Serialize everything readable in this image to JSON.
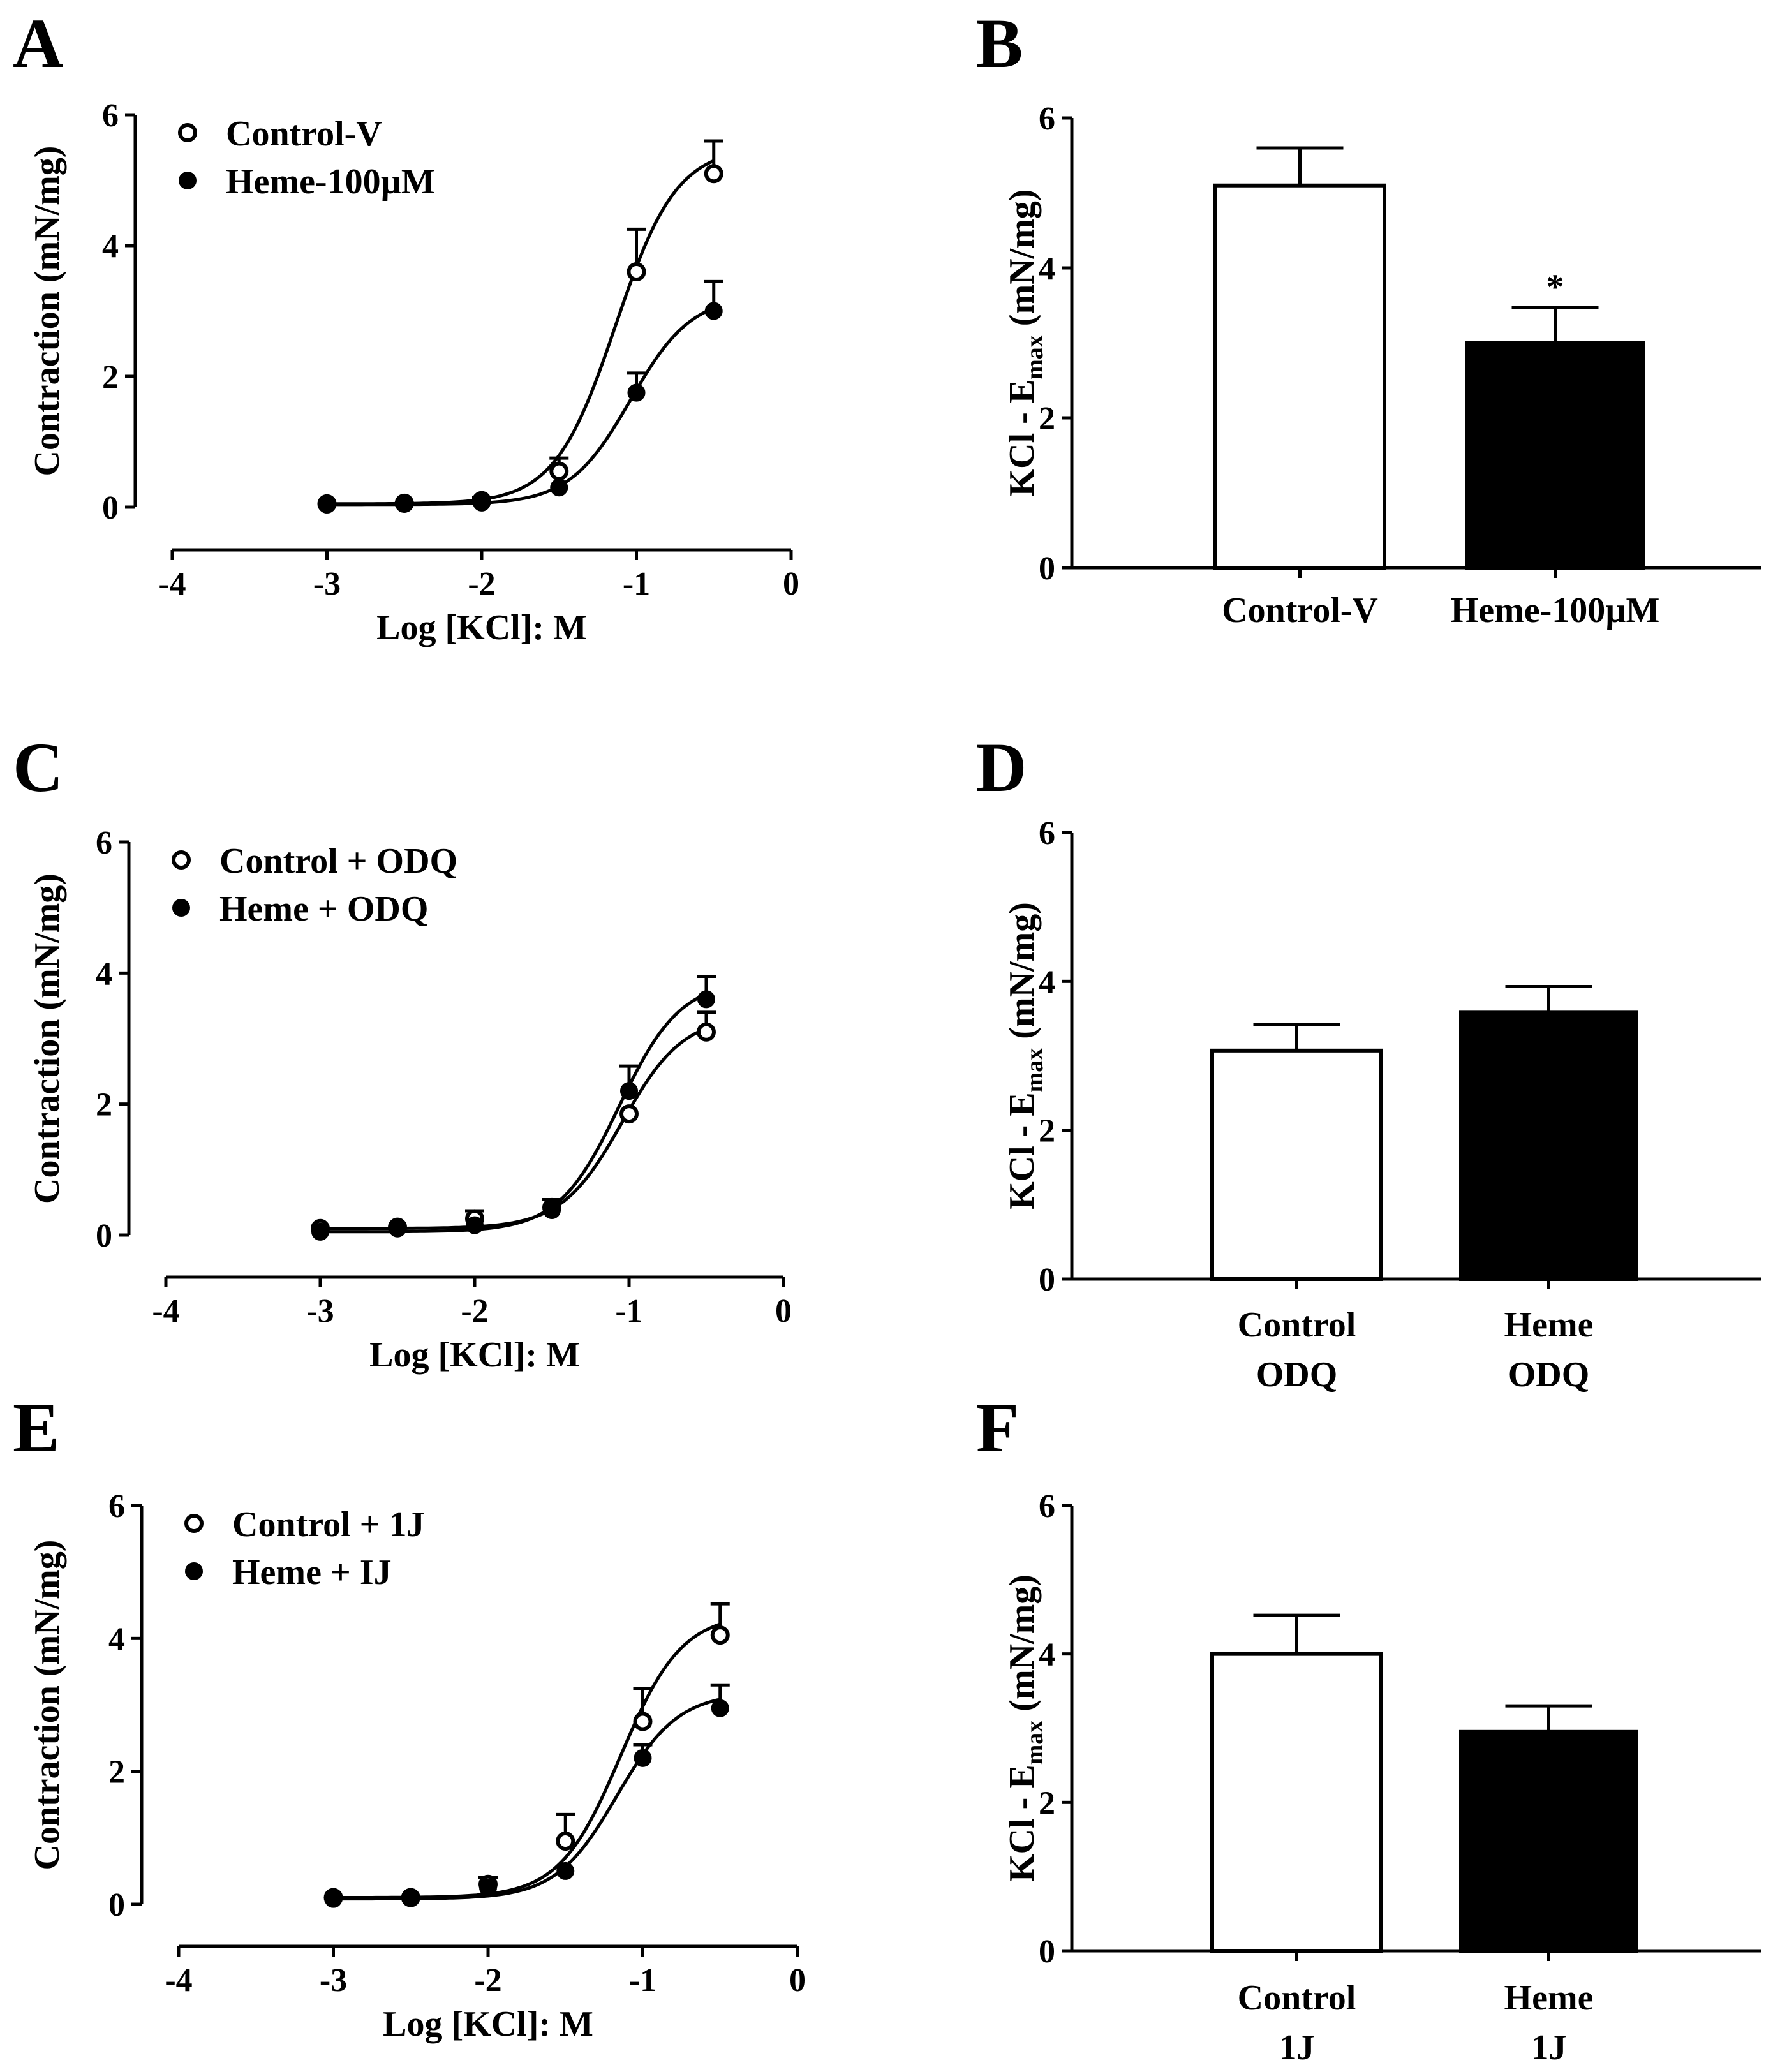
{
  "panels": {
    "A": "A",
    "B": "B",
    "C": "C",
    "D": "D",
    "E": "E",
    "F": "F"
  },
  "chart_data": [
    {
      "panel": "A",
      "type": "line",
      "xlabel": "Log [KCl]: M",
      "ylabel": "Contraction (mN/mg)",
      "xlim": [
        -4,
        0
      ],
      "ylim": [
        0,
        6
      ],
      "xticks": [
        "-4",
        "-3",
        "-2",
        "-1",
        "0"
      ],
      "yticks": [
        "0",
        "2",
        "4",
        "6"
      ],
      "legend_position": "top-left",
      "series": [
        {
          "name": "Control-V",
          "marker": "open-circle",
          "x": [
            -3,
            -2.5,
            -2,
            -1.5,
            -1,
            -0.5
          ],
          "y": [
            0.05,
            0.06,
            0.1,
            0.55,
            3.6,
            5.1
          ],
          "err": [
            0,
            0,
            0.05,
            0.2,
            0.65,
            0.5
          ]
        },
        {
          "name": "Heme-100µM",
          "marker": "filled-circle",
          "x": [
            -3,
            -2.5,
            -2,
            -1.5,
            -1,
            -0.5
          ],
          "y": [
            0.04,
            0.05,
            0.07,
            0.3,
            1.75,
            3.0
          ],
          "err": [
            0,
            0,
            0,
            0,
            0.3,
            0.45
          ]
        }
      ]
    },
    {
      "panel": "B",
      "type": "bar",
      "ylabel": "KCl - E",
      "ylabel_sub": "max",
      "ylabel_tail": " (mN/mg)",
      "ylim": [
        0,
        6
      ],
      "yticks": [
        "0",
        "2",
        "4",
        "6"
      ],
      "categories": [
        [
          "Control-V"
        ],
        [
          "Heme-100µM"
        ]
      ],
      "values": [
        5.1,
        3.0
      ],
      "errors": [
        0.5,
        0.47
      ],
      "fills": [
        "#ffffff",
        "#000000"
      ],
      "annotations": [
        "",
        "*"
      ]
    },
    {
      "panel": "C",
      "type": "line",
      "xlabel": "Log [KCl]: M",
      "ylabel": "Contraction (mN/mg)",
      "xlim": [
        -4,
        0
      ],
      "ylim": [
        0,
        6
      ],
      "xticks": [
        "-4",
        "-3",
        "-2",
        "-1",
        "0"
      ],
      "yticks": [
        "0",
        "2",
        "4",
        "6"
      ],
      "legend_position": "top-left",
      "series": [
        {
          "name": "Control + ODQ",
          "marker": "open-circle",
          "x": [
            -3,
            -2.5,
            -2,
            -1.5,
            -1,
            -0.5
          ],
          "y": [
            0.1,
            0.12,
            0.25,
            0.42,
            1.85,
            3.1
          ],
          "err": [
            0,
            0,
            0.12,
            0.12,
            0,
            0.3
          ]
        },
        {
          "name": "Heme  + ODQ",
          "marker": "filled-circle",
          "x": [
            -3,
            -2.5,
            -2,
            -1.5,
            -1,
            -0.5
          ],
          "y": [
            0.05,
            0.1,
            0.15,
            0.38,
            2.2,
            3.6
          ],
          "err": [
            0,
            0,
            0,
            0,
            0.38,
            0.35
          ]
        }
      ]
    },
    {
      "panel": "D",
      "type": "bar",
      "ylabel": "KCl - E",
      "ylabel_sub": "max",
      "ylabel_tail": " (mN/mg)",
      "ylim": [
        0,
        6
      ],
      "yticks": [
        "0",
        "2",
        "4",
        "6"
      ],
      "categories": [
        [
          "Control",
          "ODQ"
        ],
        [
          "Heme",
          "ODQ"
        ]
      ],
      "values": [
        3.07,
        3.58
      ],
      "errors": [
        0.35,
        0.35
      ],
      "fills": [
        "#ffffff",
        "#000000"
      ],
      "annotations": [
        "",
        ""
      ]
    },
    {
      "panel": "E",
      "type": "line",
      "xlabel": "Log [KCl]: M",
      "ylabel": "Contraction (mN/mg)",
      "xlim": [
        -4,
        0
      ],
      "ylim": [
        0,
        6
      ],
      "xticks": [
        "-4",
        "-3",
        "-2",
        "-1",
        "0"
      ],
      "yticks": [
        "0",
        "2",
        "4",
        "6"
      ],
      "legend_position": "top-left",
      "series": [
        {
          "name": "Control + 1J",
          "marker": "open-circle",
          "x": [
            -3,
            -2.5,
            -2,
            -1.5,
            -1,
            -0.5
          ],
          "y": [
            0.1,
            0.1,
            0.3,
            0.95,
            2.75,
            4.05
          ],
          "err": [
            0,
            0,
            0.1,
            0.4,
            0.5,
            0.47
          ]
        },
        {
          "name": "Heme + IJ",
          "marker": "filled-circle",
          "x": [
            -3,
            -2.5,
            -2,
            -1.5,
            -1,
            -0.5
          ],
          "y": [
            0.08,
            0.1,
            0.25,
            0.5,
            2.2,
            2.95
          ],
          "err": [
            0,
            0,
            0,
            0,
            0.2,
            0.35
          ]
        }
      ]
    },
    {
      "panel": "F",
      "type": "bar",
      "ylabel": "KCl - E",
      "ylabel_sub": "max",
      "ylabel_tail": " (mN/mg)",
      "ylim": [
        0,
        6
      ],
      "yticks": [
        "0",
        "2",
        "4",
        "6"
      ],
      "categories": [
        [
          "Control",
          "1J"
        ],
        [
          "Heme",
          "1J"
        ]
      ],
      "values": [
        4.0,
        2.95
      ],
      "errors": [
        0.52,
        0.35
      ],
      "fills": [
        "#ffffff",
        "#000000"
      ],
      "annotations": [
        "",
        ""
      ]
    }
  ]
}
